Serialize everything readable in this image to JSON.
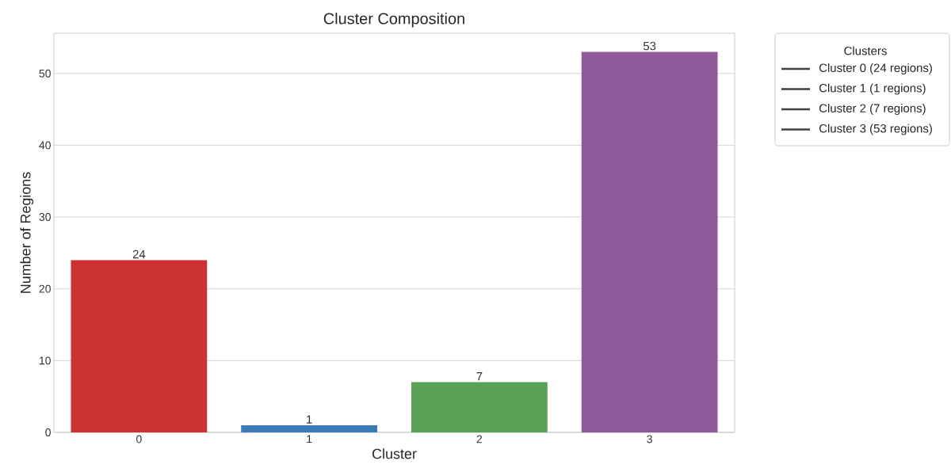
{
  "chart_data": {
    "type": "bar",
    "title": "Cluster Composition",
    "xlabel": "Cluster",
    "ylabel": "Number of Regions",
    "categories": [
      "0",
      "1",
      "2",
      "3"
    ],
    "values": [
      24,
      1,
      7,
      53
    ],
    "colors": [
      "#cd3233",
      "#3b7cb8",
      "#58a157",
      "#8f5a9a"
    ],
    "ylim": [
      0,
      55.6
    ],
    "yticks": [
      0,
      10,
      20,
      30,
      40,
      50
    ],
    "grid": "y",
    "data_labels": true,
    "legend_title": "Clusters",
    "annotations": [
      "Cluster 0 (24 regions)",
      "Cluster 1 (1 regions)",
      "Cluster 2 (7 regions)",
      "Cluster 3 (53 regions)"
    ]
  }
}
